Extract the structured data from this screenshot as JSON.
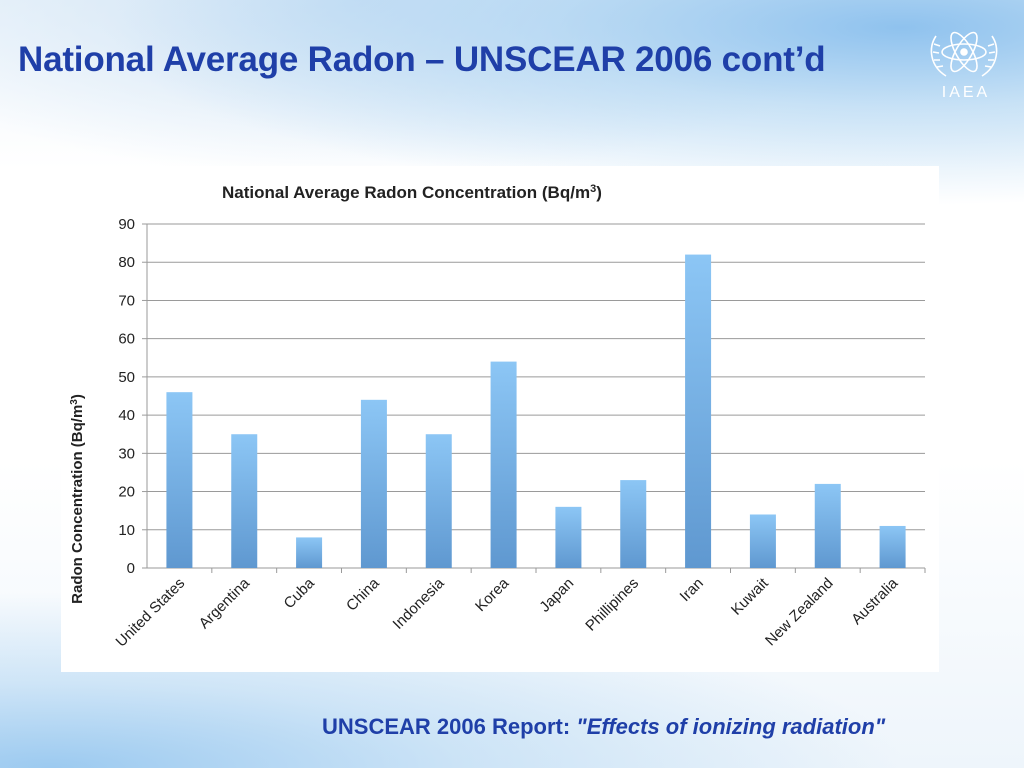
{
  "slide": {
    "title": "National Average Radon – UNSCEAR 2006 cont’d",
    "logo_text": "IAEA",
    "logo_icon": "iaea-atom-laurel-icon",
    "footer_prefix": "UNSCEAR 2006 Report: ",
    "footer_emphasis": "\"Effects of ionizing radiation\""
  },
  "colors": {
    "title": "#1f3fa8",
    "bar_top": "#8cc6f5",
    "bar_bottom": "#5f98d0",
    "grid": "#9a9a9a"
  },
  "chart_data": {
    "type": "bar",
    "title": "National Average Radon Concentration (Bq/m",
    "title_sup": "3",
    "title_end": ")",
    "ylabel": "Radon Concentration (Bq/m",
    "ylabel_sup": "3",
    "ylabel_end": ")",
    "xlabel": "",
    "ylim": [
      0,
      90
    ],
    "yticks": [
      0,
      10,
      20,
      30,
      40,
      50,
      60,
      70,
      80,
      90
    ],
    "grid": true,
    "categories": [
      "United States",
      "Argentina",
      "Cuba",
      "China",
      "Indonesia",
      "Korea",
      "Japan",
      "Phillipines",
      "Iran",
      "Kuwait",
      "New Zealand",
      "Australia"
    ],
    "values": [
      46,
      35,
      8,
      44,
      35,
      54,
      16,
      23,
      82,
      14,
      22,
      11
    ]
  }
}
